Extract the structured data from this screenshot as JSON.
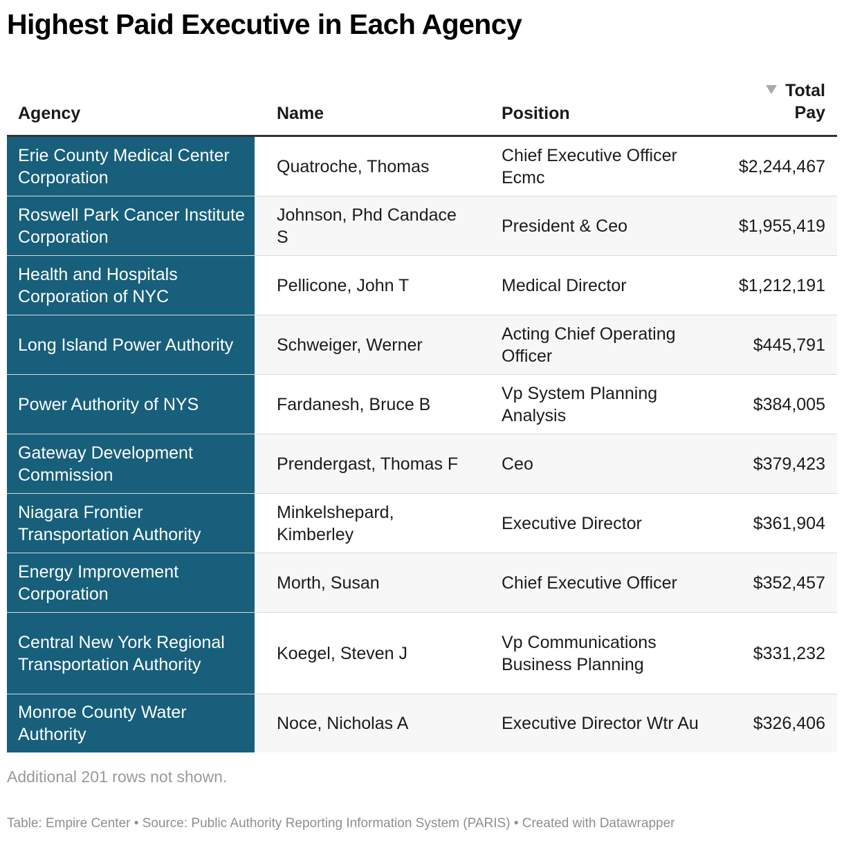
{
  "title": "Highest Paid Executive in Each Agency",
  "header": {
    "agency": "Agency",
    "name": "Name",
    "position": "Position",
    "pay_line1": "Total",
    "pay_line2": "Pay"
  },
  "colors": {
    "agency_column_bg": "#175f7b",
    "agency_column_text": "#ffffff",
    "sort_arrow": "#aaaaaa",
    "stripe": "#f7f7f7"
  },
  "chart_data": {
    "type": "table",
    "columns": [
      "Agency",
      "Name",
      "Position",
      "Total Pay"
    ],
    "sorted_by": "Total Pay",
    "sort_order": "descending",
    "rows": [
      {
        "agency": "Erie County Medical Center Corporation",
        "name": "Quatroche, Thomas",
        "position": "Chief Executive Officer Ecmc",
        "pay": "$2,244,467"
      },
      {
        "agency": "Roswell Park Cancer Institute Corporation",
        "name": "Johnson, Phd Candace S",
        "position": "President & Ceo",
        "pay": "$1,955,419"
      },
      {
        "agency": "Health and Hospitals Corporation of NYC",
        "name": "Pellicone, John T",
        "position": "Medical Director",
        "pay": "$1,212,191"
      },
      {
        "agency": "Long Island Power Authority",
        "name": "Schweiger, Werner",
        "position": "Acting Chief Operating Officer",
        "pay": "$445,791"
      },
      {
        "agency": "Power Authority of NYS",
        "name": "Fardanesh, Bruce B",
        "position": "Vp System Planning Analysis",
        "pay": "$384,005"
      },
      {
        "agency": "Gateway Development Commission",
        "name": "Prendergast, Thomas F",
        "position": "Ceo",
        "pay": "$379,423"
      },
      {
        "agency": "Niagara Frontier Transportation Authority",
        "name": "Minkelshepard, Kimberley",
        "position": "Executive Director",
        "pay": "$361,904"
      },
      {
        "agency": "Energy Improvement Corporation",
        "name": "Morth, Susan",
        "position": "Chief Executive Officer",
        "pay": "$352,457"
      },
      {
        "agency": "Central New York Regional Transportation Authority",
        "name": "Koegel, Steven J",
        "position": "Vp Communications Business Planning",
        "pay": "$331,232"
      },
      {
        "agency": "Monroe County Water Authority",
        "name": "Noce, Nicholas A",
        "position": "Executive Director Wtr Au",
        "pay": "$326,406"
      }
    ]
  },
  "note": "Additional 201 rows not shown.",
  "footer": "Table: Empire Center • Source: Public Authority Reporting Information System (PARIS) • Created with Datawrapper"
}
